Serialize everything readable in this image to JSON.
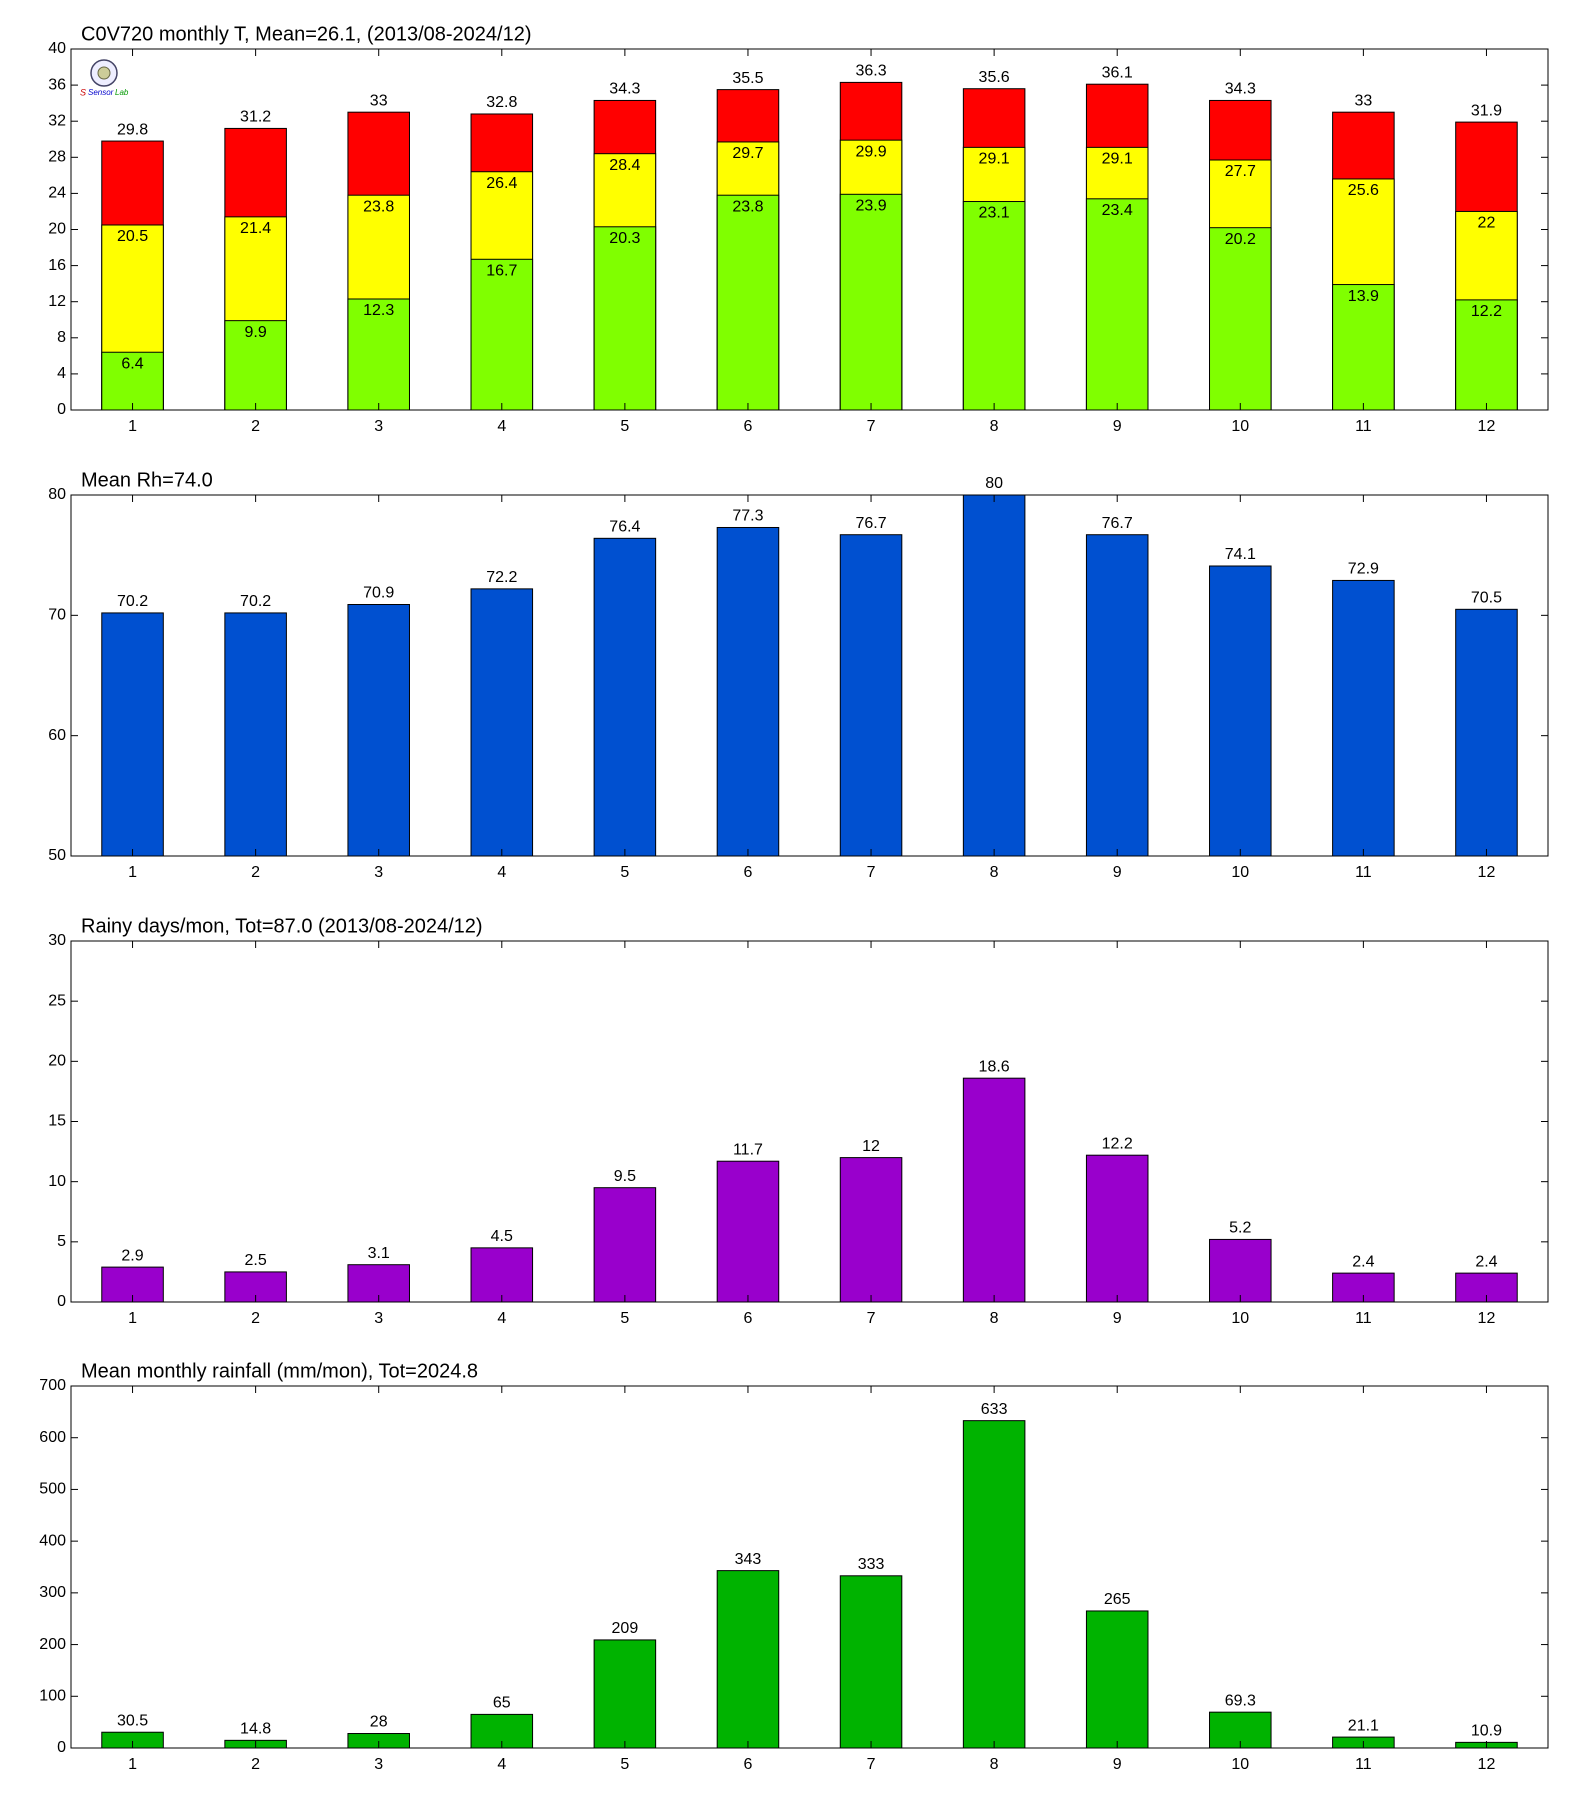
{
  "chart_data": [
    {
      "type": "bar",
      "title": "C0V720 monthly T, Mean=26.1, (2013/08-2024/12)",
      "categories": [
        "1",
        "2",
        "3",
        "4",
        "5",
        "6",
        "7",
        "8",
        "9",
        "10",
        "11",
        "12"
      ],
      "series": [
        {
          "color": "#ff0000",
          "values": [
            29.8,
            31.2,
            33,
            32.8,
            34.3,
            35.5,
            36.3,
            35.6,
            36.1,
            34.3,
            33,
            31.9
          ]
        },
        {
          "color": "#ffff00",
          "values": [
            20.5,
            21.4,
            23.8,
            26.4,
            28.4,
            29.7,
            29.9,
            29.1,
            29.1,
            27.7,
            25.6,
            22
          ]
        },
        {
          "color": "#80ff00",
          "values": [
            6.4,
            9.9,
            12.3,
            16.7,
            20.3,
            23.8,
            23.9,
            23.1,
            23.4,
            20.2,
            13.9,
            12.2
          ]
        }
      ],
      "ylim": [
        0,
        40
      ],
      "yticks": [
        0,
        4,
        8,
        12,
        16,
        20,
        24,
        28,
        32,
        36,
        40
      ]
    },
    {
      "type": "bar",
      "title": "Mean Rh=74.0",
      "categories": [
        "1",
        "2",
        "3",
        "4",
        "5",
        "6",
        "7",
        "8",
        "9",
        "10",
        "11",
        "12"
      ],
      "series": [
        {
          "color": "#0050d0",
          "values": [
            70.2,
            70.2,
            70.9,
            72.2,
            76.4,
            77.3,
            76.7,
            80,
            76.7,
            74.1,
            72.9,
            70.5
          ]
        }
      ],
      "ylim": [
        50,
        80
      ],
      "yticks": [
        50,
        60,
        70,
        80
      ]
    },
    {
      "type": "bar",
      "title": "Rainy days/mon, Tot=87.0 (2013/08-2024/12)",
      "categories": [
        "1",
        "2",
        "3",
        "4",
        "5",
        "6",
        "7",
        "8",
        "9",
        "10",
        "11",
        "12"
      ],
      "series": [
        {
          "color": "#9900cc",
          "values": [
            2.9,
            2.5,
            3.1,
            4.5,
            9.5,
            11.7,
            12,
            18.6,
            12.2,
            5.2,
            2.4,
            2.4
          ]
        }
      ],
      "ylim": [
        0,
        30
      ],
      "yticks": [
        0,
        5,
        10,
        15,
        20,
        25,
        30
      ]
    },
    {
      "type": "bar",
      "title": "Mean monthly rainfall (mm/mon), Tot=2024.8",
      "categories": [
        "1",
        "2",
        "3",
        "4",
        "5",
        "6",
        "7",
        "8",
        "9",
        "10",
        "11",
        "12"
      ],
      "series": [
        {
          "color": "#00b300",
          "values": [
            30.5,
            14.8,
            28,
            65,
            209,
            343,
            333,
            633,
            265,
            69.3,
            21.1,
            10.9
          ]
        }
      ],
      "ylim": [
        0,
        700
      ],
      "yticks": [
        0,
        100,
        200,
        300,
        400,
        500,
        600,
        700
      ]
    }
  ]
}
